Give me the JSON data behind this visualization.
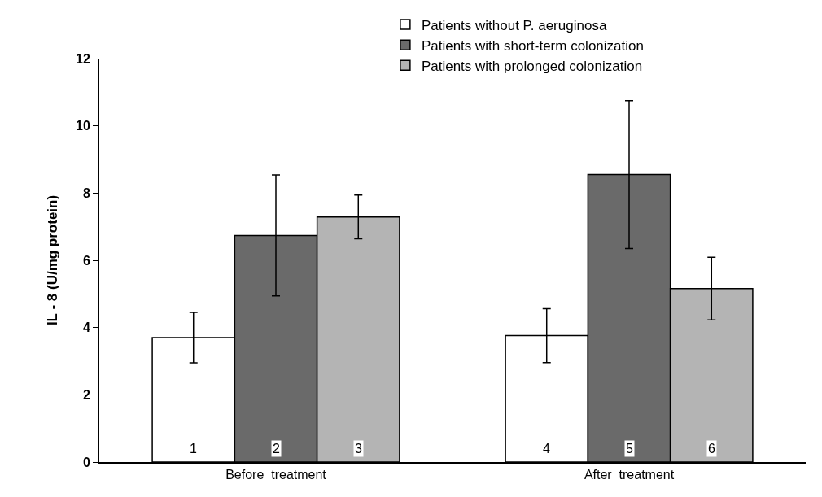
{
  "chart_data": {
    "type": "bar",
    "ylabel": "IL - 8 (U/mg protein)",
    "categories": [
      "Before  treatment",
      "After  treatment"
    ],
    "series": [
      {
        "name": "Patients without P. aeruginosa",
        "color": "#ffffff",
        "values": [
          3.7,
          3.76
        ],
        "errors": [
          0.75,
          0.8
        ]
      },
      {
        "name": "Patients with short-term colonization",
        "color": "#6a6a6a",
        "values": [
          6.74,
          8.55
        ],
        "errors": [
          1.8,
          2.2
        ]
      },
      {
        "name": "Patients with prolonged colonization",
        "color": "#b4b4b4",
        "values": [
          7.29,
          5.16
        ],
        "errors": [
          0.65,
          0.93
        ]
      }
    ],
    "annotations": [
      "1",
      "2",
      "3",
      "4",
      "5",
      "6"
    ],
    "ylim": [
      0,
      12
    ],
    "yticks": [
      0,
      2,
      4,
      6,
      8,
      10,
      12
    ],
    "grid": false,
    "legend": "top"
  }
}
